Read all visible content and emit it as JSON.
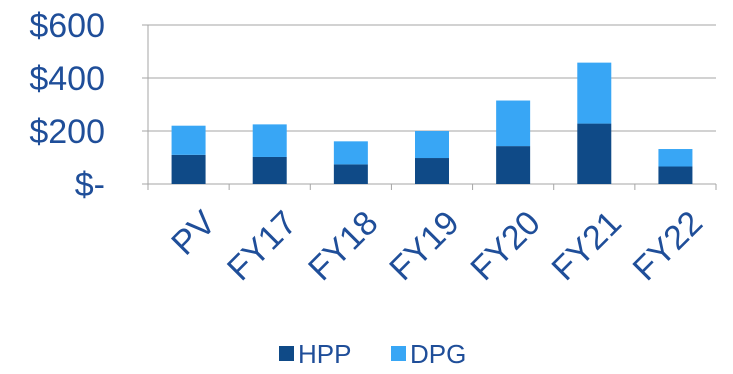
{
  "chart_data": {
    "type": "bar",
    "stacked": true,
    "categories": [
      "PV",
      "FY17",
      "FY18",
      "FY19",
      "FY20",
      "FY21",
      "FY22"
    ],
    "series": [
      {
        "name": "HPP",
        "color": "#0f4a87",
        "values": [
          110,
          102,
          74,
          98,
          143,
          228,
          66
        ]
      },
      {
        "name": "DPG",
        "color": "#38a6f5",
        "values": [
          110,
          123,
          87,
          102,
          172,
          230,
          66
        ]
      }
    ],
    "yticks": [
      {
        "value": 0,
        "label": "$-"
      },
      {
        "value": 200,
        "label": "$200"
      },
      {
        "value": 400,
        "label": "$400"
      },
      {
        "value": 600,
        "label": "$600"
      }
    ],
    "ylim": [
      0,
      600
    ],
    "grid": true,
    "legend": "bottom",
    "title": "",
    "xlabel": "",
    "ylabel": ""
  }
}
